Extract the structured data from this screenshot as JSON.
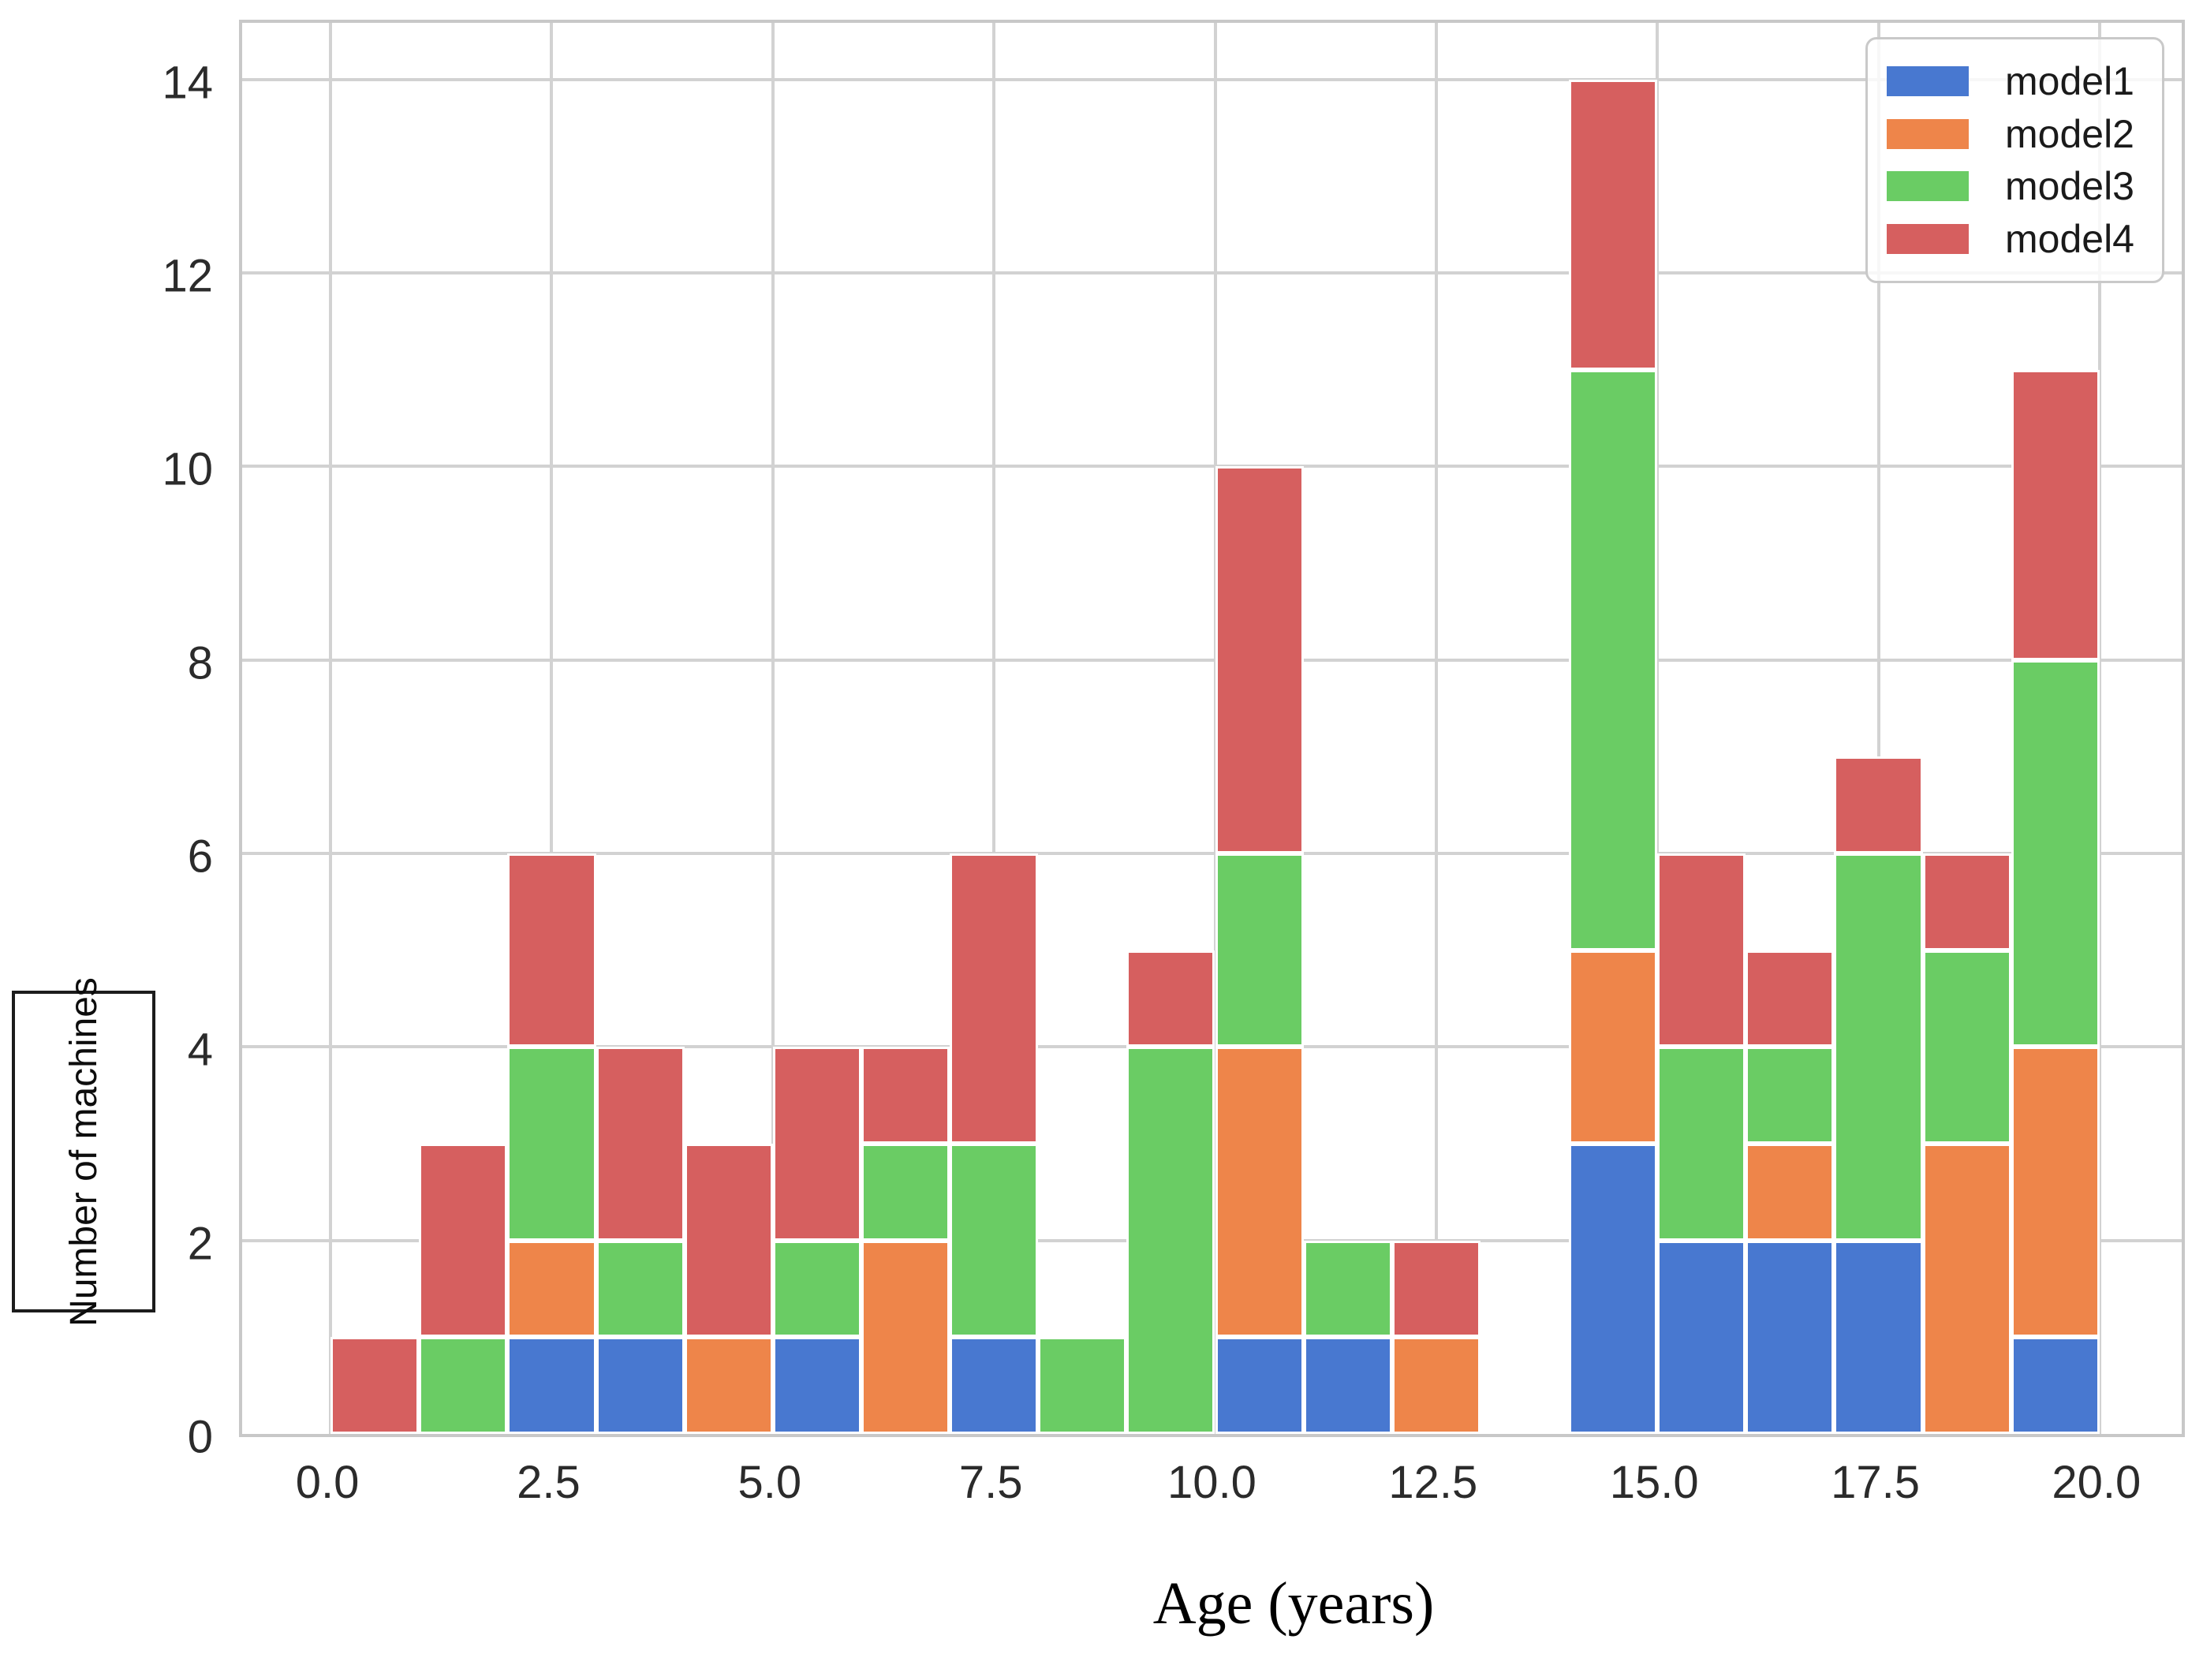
{
  "chart_data": {
    "type": "bar",
    "variant": "stacked-histogram",
    "xlabel": "Age (years)",
    "ylabel": "Number of machines",
    "bin_width": 1,
    "bin_starts": [
      0,
      1,
      2,
      3,
      4,
      5,
      6,
      7,
      8,
      9,
      10,
      11,
      12,
      13,
      14,
      15,
      16,
      17,
      18,
      19
    ],
    "series": [
      {
        "name": "model1",
        "color": "#4878D0",
        "values": [
          0,
          0,
          1,
          1,
          0,
          1,
          0,
          1,
          0,
          0,
          1,
          1,
          0,
          0,
          3,
          2,
          2,
          2,
          0,
          1
        ]
      },
      {
        "name": "model2",
        "color": "#EE854A",
        "values": [
          0,
          0,
          1,
          0,
          1,
          0,
          2,
          0,
          0,
          0,
          3,
          0,
          1,
          0,
          2,
          0,
          1,
          0,
          3,
          3
        ]
      },
      {
        "name": "model3",
        "color": "#6ACC64",
        "values": [
          0,
          1,
          2,
          1,
          0,
          1,
          1,
          2,
          1,
          4,
          2,
          1,
          0,
          0,
          6,
          2,
          1,
          4,
          2,
          4
        ]
      },
      {
        "name": "model4",
        "color": "#D65F5F",
        "values": [
          1,
          2,
          2,
          2,
          2,
          2,
          1,
          3,
          0,
          1,
          4,
          0,
          1,
          0,
          3,
          2,
          1,
          1,
          1,
          3
        ]
      }
    ],
    "totals": [
      1,
      3,
      6,
      4,
      3,
      4,
      4,
      6,
      1,
      5,
      10,
      2,
      2,
      0,
      14,
      6,
      5,
      7,
      6,
      11
    ],
    "x_tick_values": [
      0,
      2.5,
      5,
      7.5,
      10,
      12.5,
      15,
      17.5,
      20
    ],
    "x_tick_labels": [
      "0.0",
      "2.5",
      "5.0",
      "7.5",
      "10.0",
      "12.5",
      "15.0",
      "17.5",
      "20.0"
    ],
    "y_tick_values": [
      0,
      2,
      4,
      6,
      8,
      10,
      12,
      14
    ],
    "y_tick_labels": [
      "0",
      "2",
      "4",
      "6",
      "8",
      "10",
      "12",
      "14"
    ],
    "xlim": [
      -1,
      21
    ],
    "ylim": [
      0,
      14.65
    ],
    "grid": true,
    "legend": {
      "position": "upper right",
      "entries": [
        "model1",
        "model2",
        "model3",
        "model4"
      ]
    }
  },
  "style_colors": {
    "background": "#ffffff",
    "gridline": "#d2d2d2",
    "spine": "#c8c8c8",
    "tick_label": "#2b2b2b",
    "legend_border": "#c9c9c9",
    "ylabel_box_border": "#1c1c1c"
  }
}
